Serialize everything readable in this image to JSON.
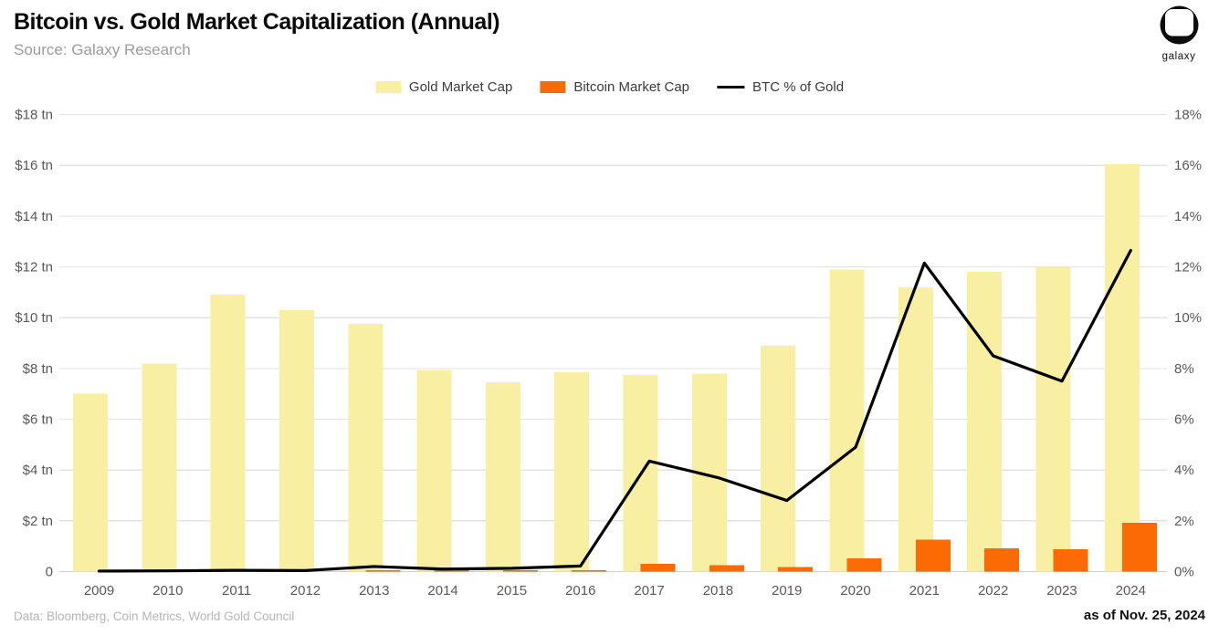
{
  "header": {
    "title": "Bitcoin vs. Gold Market Capitalization (Annual)",
    "subtitle": "Source: Galaxy Research",
    "logo_text": "galaxy"
  },
  "footer": {
    "left": "Data: Bloomberg, Coin Metrics, World Gold Council",
    "right": "as of Nov. 25, 2024"
  },
  "colors": {
    "gold": "#F9EFA3",
    "bitcoin": "#FB6A04",
    "line": "#000000",
    "gridline": "#E3E3E3",
    "zero_line": "#CFCFCF",
    "tick_text": "#595959"
  },
  "chart_data": {
    "type": "bar",
    "subtype": "grouped bars with overlaid line, dual axis",
    "categories": [
      "2009",
      "2010",
      "2011",
      "2012",
      "2013",
      "2014",
      "2015",
      "2016",
      "2017",
      "2018",
      "2019",
      "2020",
      "2021",
      "2022",
      "2023",
      "2024"
    ],
    "series": [
      {
        "name": "Gold Market Cap",
        "type": "bar",
        "axis": "left",
        "color": "#F9EFA3",
        "values": [
          7.0,
          8.2,
          10.9,
          10.3,
          9.75,
          7.95,
          7.45,
          7.85,
          7.75,
          7.8,
          8.9,
          11.9,
          11.2,
          11.8,
          12.0,
          16.05
        ]
      },
      {
        "name": "Bitcoin Market Cap",
        "type": "bar",
        "axis": "left",
        "color": "#FB6A04",
        "values": [
          0,
          0,
          0,
          0,
          0.01,
          0.01,
          0.01,
          0.02,
          0.3,
          0.25,
          0.18,
          0.52,
          1.26,
          0.91,
          0.88,
          1.93
        ]
      },
      {
        "name": "BTC % of Gold",
        "type": "line",
        "axis": "right",
        "color": "#000000",
        "values": [
          0.02,
          0.03,
          0.05,
          0.04,
          0.2,
          0.1,
          0.13,
          0.22,
          4.35,
          3.7,
          2.8,
          4.9,
          12.15,
          8.5,
          7.5,
          12.65
        ]
      }
    ],
    "left_axis": {
      "ticks": [
        "$18 tn",
        "$16 tn",
        "$14 tn",
        "$12 tn",
        "$10 tn",
        "$8 tn",
        "$6 tn",
        "$4 tn",
        "$2 tn",
        "0"
      ],
      "min": 0,
      "max": 18
    },
    "right_axis": {
      "ticks": [
        "18%",
        "16%",
        "14%",
        "12%",
        "10%",
        "8%",
        "6%",
        "4%",
        "2%",
        "0%"
      ],
      "min": 0,
      "max": 18
    },
    "grid": true,
    "legend_position": "top-center"
  }
}
